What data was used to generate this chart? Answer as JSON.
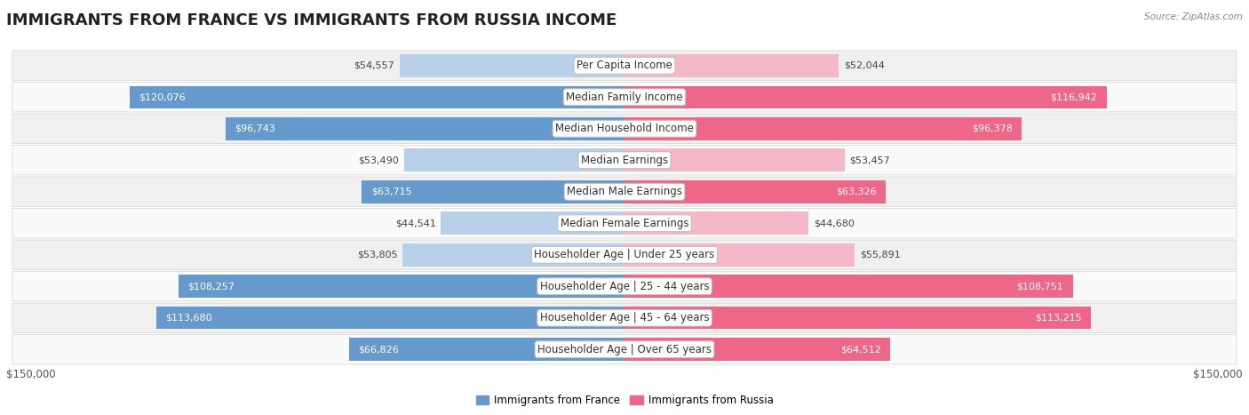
{
  "title": "IMMIGRANTS FROM FRANCE VS IMMIGRANTS FROM RUSSIA INCOME",
  "source": "Source: ZipAtlas.com",
  "categories": [
    "Per Capita Income",
    "Median Family Income",
    "Median Household Income",
    "Median Earnings",
    "Median Male Earnings",
    "Median Female Earnings",
    "Householder Age | Under 25 years",
    "Householder Age | 25 - 44 years",
    "Householder Age | 45 - 64 years",
    "Householder Age | Over 65 years"
  ],
  "france_values": [
    54557,
    120076,
    96743,
    53490,
    63715,
    44541,
    53805,
    108257,
    113680,
    66826
  ],
  "russia_values": [
    52044,
    116942,
    96378,
    53457,
    63326,
    44680,
    55891,
    108751,
    113215,
    64512
  ],
  "france_color_light": "#b8d0e8",
  "france_color_dark": "#6699cc",
  "russia_color_light": "#f5b8c8",
  "russia_color_dark": "#ee6688",
  "max_value": 150000,
  "bg_color": "#ffffff",
  "row_bg_odd": "#f0f0f0",
  "row_bg_even": "#fafafa",
  "row_border": "#d8d8d8",
  "title_fontsize": 13,
  "cat_fontsize": 8.5,
  "value_fontsize": 8.0,
  "tick_fontsize": 8.5,
  "legend_label_france": "Immigrants from France",
  "legend_label_russia": "Immigrants from Russia",
  "inside_threshold": 0.42
}
